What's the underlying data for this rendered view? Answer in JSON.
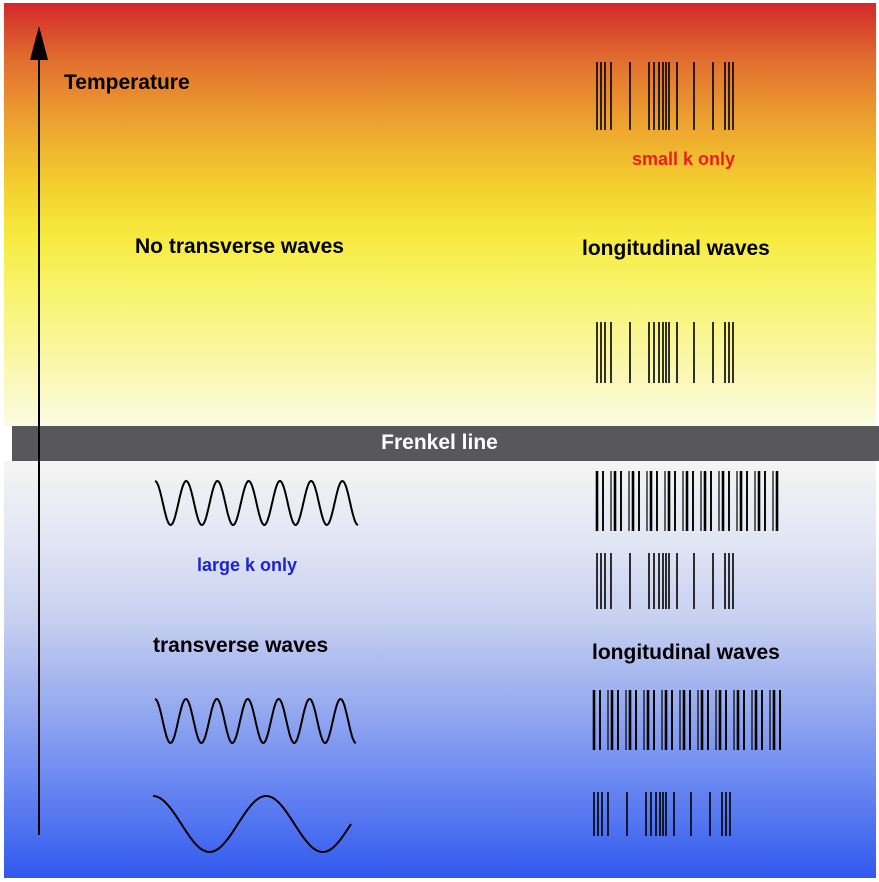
{
  "labels": {
    "temperature": "Temperature",
    "no_transverse": "No transverse waves",
    "longitudinal_upper": "longitudinal waves",
    "small_k": "small k only",
    "frenkel": "Frenkel line",
    "large_k": "large k only",
    "transverse": "transverse waves",
    "longitudinal_lower": "longitudinal waves"
  },
  "colors": {
    "hot": "#d3282b",
    "warm": "#f7ea3e",
    "cool": "#f5f5f3",
    "cold": "#3158ee",
    "frenkel_bar": "#58585a",
    "small_k_text": "#e8201e",
    "large_k_text": "#1c22d6"
  },
  "icons": [
    "temperature-axis-arrow",
    "longitudinal-barcode",
    "transverse-sine-wave"
  ]
}
